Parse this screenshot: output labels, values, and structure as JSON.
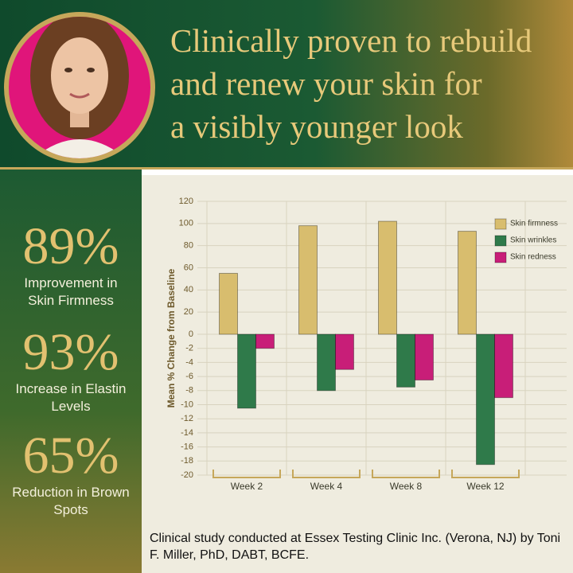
{
  "header": {
    "title_lines": [
      "Clinically proven to rebuild",
      "and renew your skin for",
      "a visibly younger look"
    ]
  },
  "stats": [
    {
      "value": "89%",
      "label": "Improvement in Skin Firmness"
    },
    {
      "value": "93%",
      "label": "Increase in Elastin Levels"
    },
    {
      "value": "65%",
      "label": "Reduction in Brown Spots"
    }
  ],
  "footnote": "Clinical study conducted at Essex Testing Clinic Inc. (Verona, NJ) by Toni F. Miller, PhD, DABT, BCFE.",
  "chart_data": {
    "type": "bar",
    "y_label": "Mean % Change from Baseline",
    "categories": [
      "Week 2",
      "Week 4",
      "Week 8",
      "Week 12"
    ],
    "series": [
      {
        "name": "Skin firmness",
        "color": "#d8bd6e",
        "values": [
          55,
          98,
          102,
          93
        ]
      },
      {
        "name": "Skin wrinkles",
        "color": "#2f7a4a",
        "values": [
          -10.5,
          -8,
          -7.5,
          -18.5
        ]
      },
      {
        "name": "Skin redness",
        "color": "#c81e78",
        "values": [
          -2,
          -5,
          -6.5,
          -9
        ]
      }
    ],
    "ylim": [
      -20,
      120
    ],
    "yticks": [
      120,
      100,
      80,
      60,
      40,
      20,
      0,
      -2,
      -4,
      -6,
      -8,
      -10,
      -12,
      -14,
      -16,
      -18,
      -20
    ],
    "grid": true,
    "legend": "top-right"
  }
}
